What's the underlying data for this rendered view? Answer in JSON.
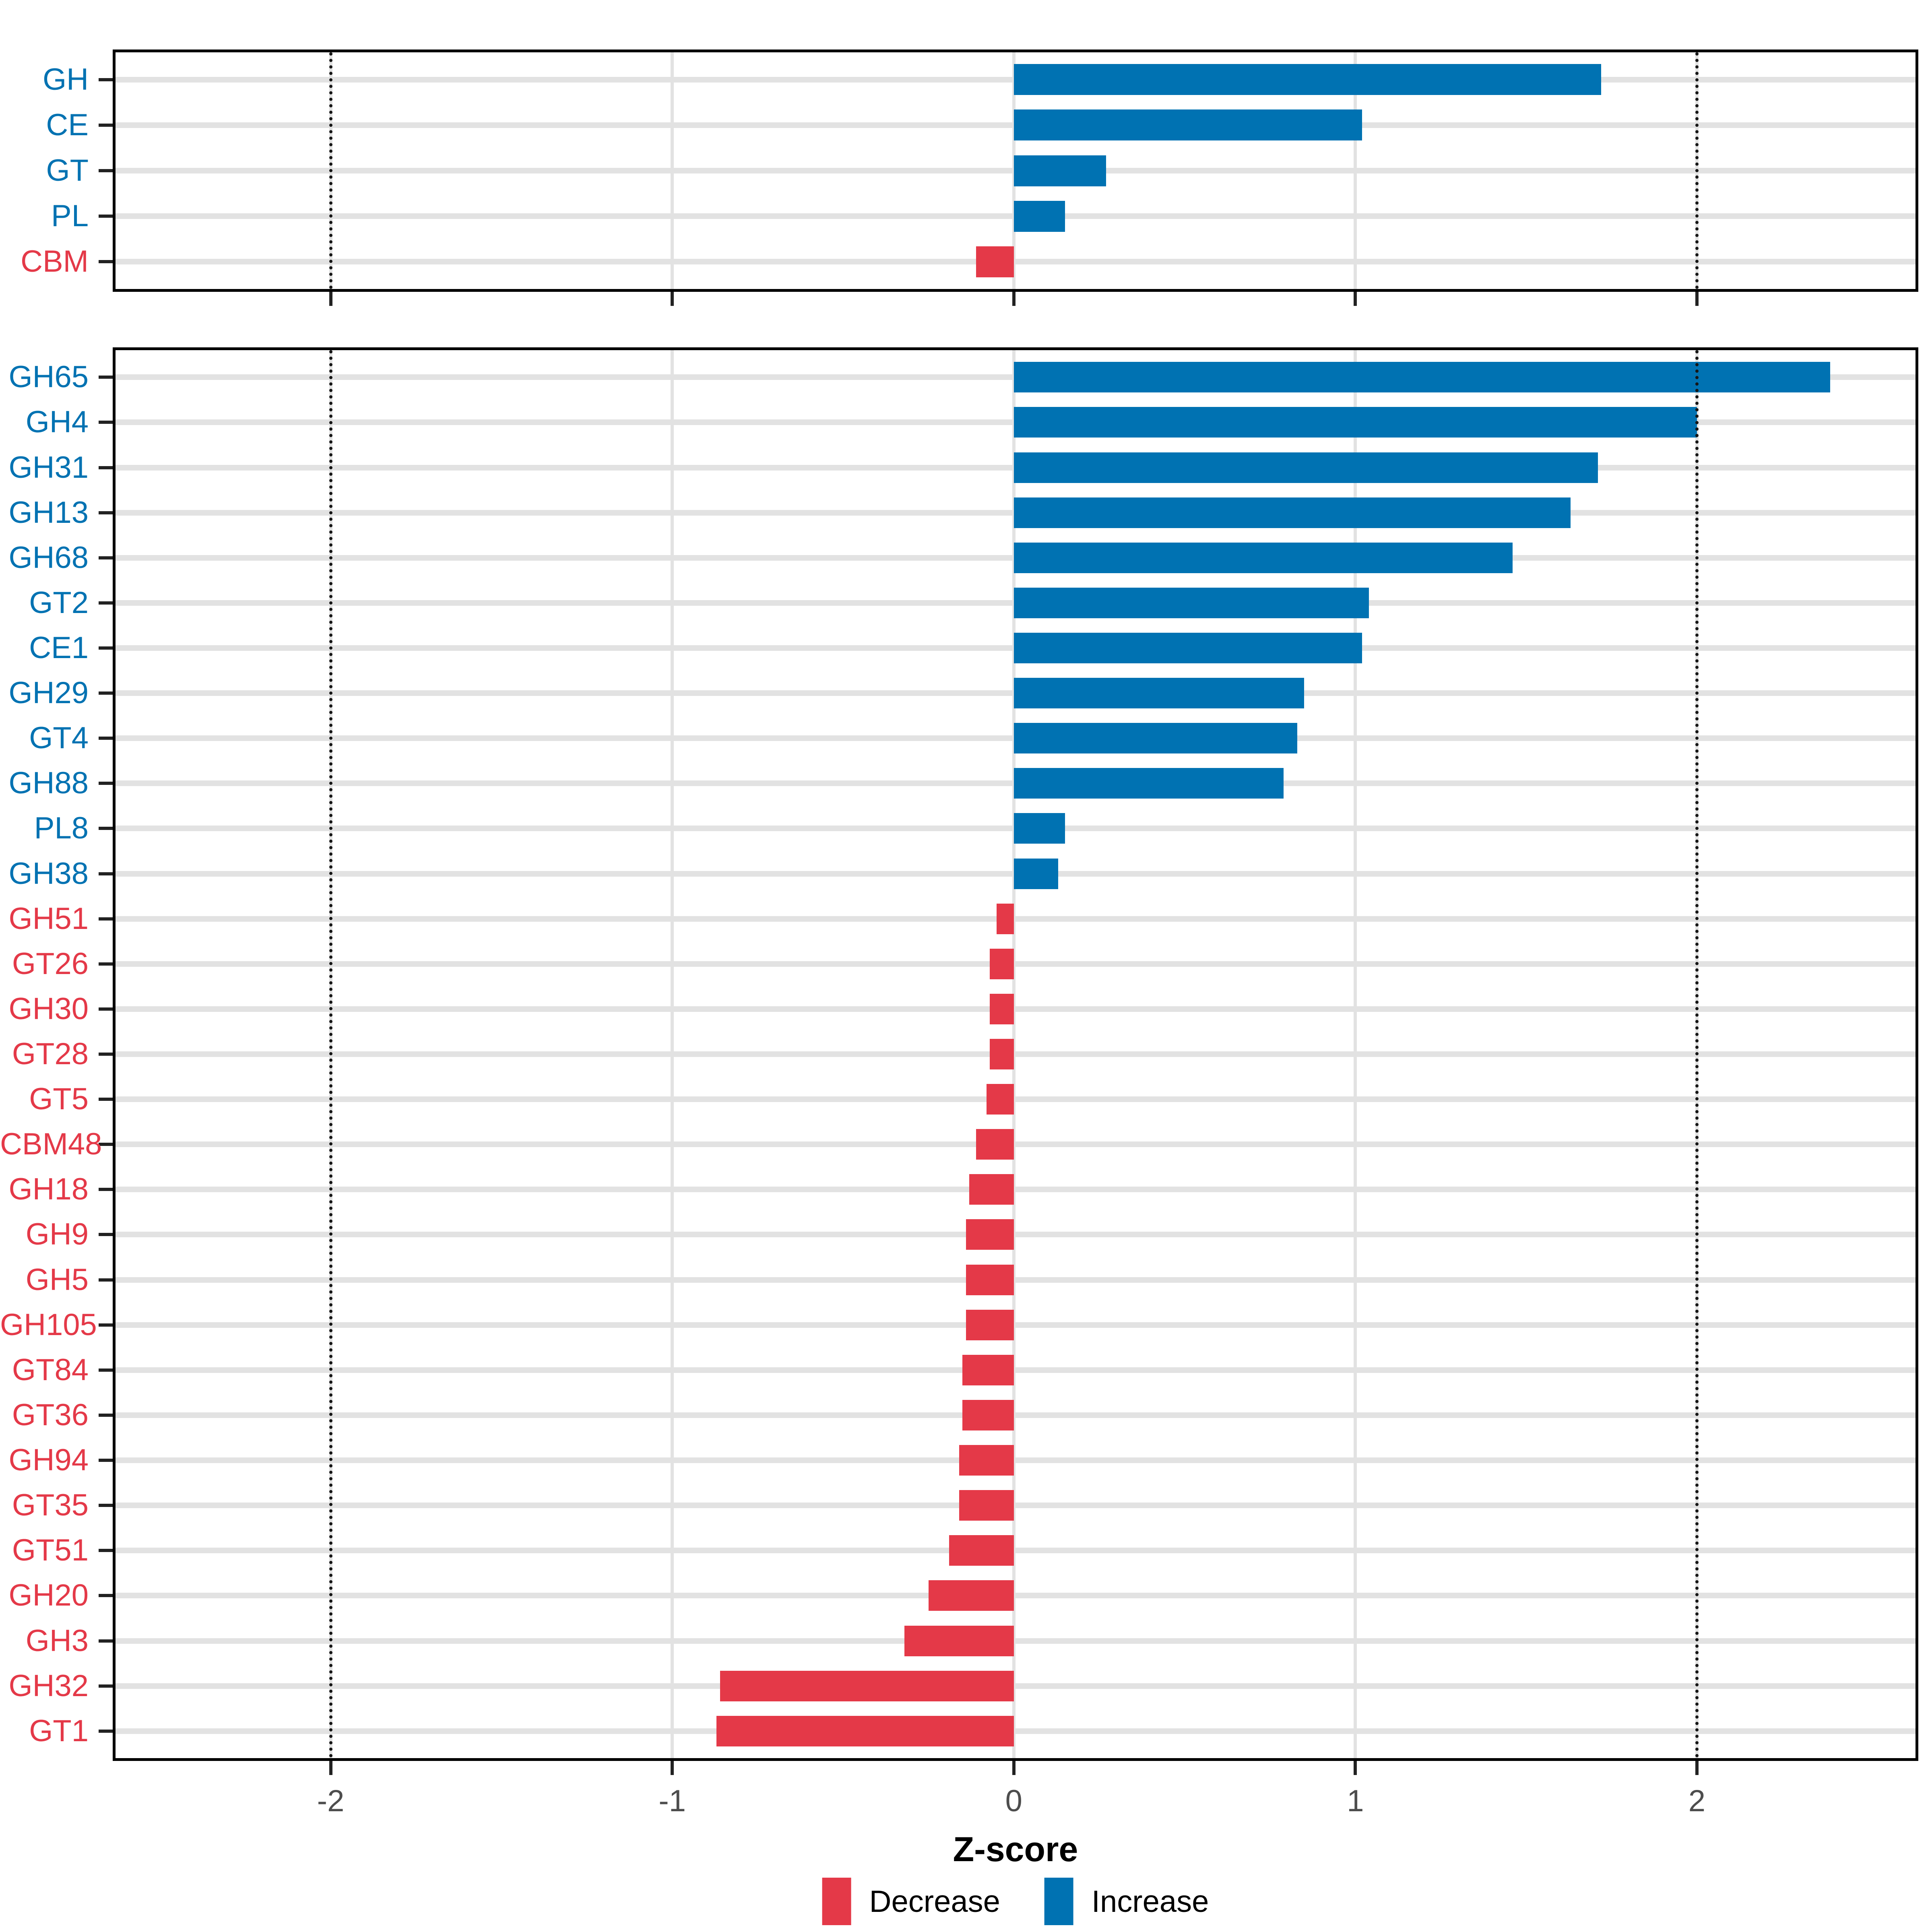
{
  "figure": {
    "axis_title": "Z-score",
    "background": "#ffffff",
    "colors": {
      "increase": "#0072b2",
      "decrease": "#e43948",
      "grid": "#e2e2e2",
      "panel_border": "#000000",
      "axis_tick_text": "#4d4d4d",
      "reference_line": "#161616"
    },
    "legend": [
      {
        "label": "Decrease",
        "color": "#e43948"
      },
      {
        "label": "Increase",
        "color": "#0072b2"
      }
    ]
  },
  "chart_data": [
    {
      "type": "bar",
      "orientation": "horizontal",
      "panel": "cazyme-classes",
      "title": "",
      "xlabel": "Z-score",
      "ylabel": "",
      "xlim": [
        -2.63,
        2.64
      ],
      "x_ticks": [
        -2,
        -1,
        0,
        1,
        2
      ],
      "reference_lines": [
        -2,
        2
      ],
      "grid": true,
      "legend_position": "bottom",
      "categories": [
        "GH",
        "CE",
        "GT",
        "PL",
        "CBM"
      ],
      "values": [
        1.72,
        1.02,
        0.27,
        0.15,
        -0.11
      ],
      "directions": [
        "Increase",
        "Increase",
        "Increase",
        "Increase",
        "Decrease"
      ]
    },
    {
      "type": "bar",
      "orientation": "horizontal",
      "panel": "cazyme-families",
      "title": "",
      "xlabel": "Z-score",
      "ylabel": "",
      "xlim": [
        -2.63,
        2.64
      ],
      "x_ticks": [
        -2,
        -1,
        0,
        1,
        2
      ],
      "reference_lines": [
        -2,
        2
      ],
      "grid": true,
      "legend_position": "bottom",
      "categories": [
        "GH65",
        "GH4",
        "GH31",
        "GH13",
        "GH68",
        "GT2",
        "CE1",
        "GH29",
        "GT4",
        "GH88",
        "PL8",
        "GH38",
        "GH51",
        "GT26",
        "GH30",
        "GT28",
        "GT5",
        "CBM48",
        "GH18",
        "GH9",
        "GH5",
        "GH105",
        "GT84",
        "GT36",
        "GH94",
        "GT35",
        "GT51",
        "GH20",
        "GH3",
        "GH32",
        "GT1"
      ],
      "values": [
        2.39,
        2.0,
        1.71,
        1.63,
        1.46,
        1.04,
        1.02,
        0.85,
        0.83,
        0.79,
        0.15,
        0.13,
        -0.05,
        -0.07,
        -0.07,
        -0.07,
        -0.08,
        -0.11,
        -0.13,
        -0.14,
        -0.14,
        -0.14,
        -0.15,
        -0.15,
        -0.16,
        -0.16,
        -0.19,
        -0.25,
        -0.32,
        -0.86,
        -0.87
      ],
      "directions": [
        "Increase",
        "Increase",
        "Increase",
        "Increase",
        "Increase",
        "Increase",
        "Increase",
        "Increase",
        "Increase",
        "Increase",
        "Increase",
        "Increase",
        "Decrease",
        "Decrease",
        "Decrease",
        "Decrease",
        "Decrease",
        "Decrease",
        "Decrease",
        "Decrease",
        "Decrease",
        "Decrease",
        "Decrease",
        "Decrease",
        "Decrease",
        "Decrease",
        "Decrease",
        "Decrease",
        "Decrease",
        "Decrease",
        "Decrease"
      ]
    }
  ]
}
